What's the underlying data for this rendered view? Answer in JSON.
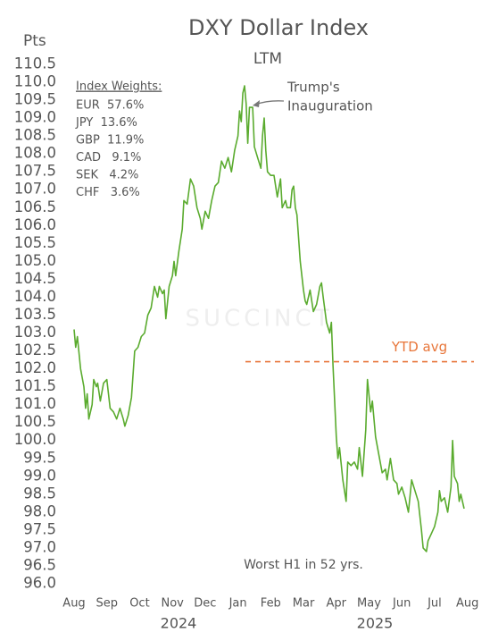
{
  "chart_data": {
    "type": "line",
    "title": "DXY Dollar Index",
    "subtitle": "LTM",
    "ylabel": "Pts",
    "years": [
      "2024",
      "2025"
    ],
    "xlim": [
      0,
      12.2
    ],
    "xticks": [
      {
        "value": 0,
        "label": "Aug"
      },
      {
        "value": 1,
        "label": "Sep"
      },
      {
        "value": 2,
        "label": "Oct"
      },
      {
        "value": 3,
        "label": "Nov"
      },
      {
        "value": 4,
        "label": "Dec"
      },
      {
        "value": 5,
        "label": "Jan"
      },
      {
        "value": 6,
        "label": "Feb"
      },
      {
        "value": 7,
        "label": "Mar"
      },
      {
        "value": 8,
        "label": "Apr"
      },
      {
        "value": 9,
        "label": "May"
      },
      {
        "value": 10,
        "label": "Jun"
      },
      {
        "value": 11,
        "label": "Jul"
      },
      {
        "value": 12,
        "label": "Aug"
      }
    ],
    "ylim": [
      96,
      110.5
    ],
    "yticks": [
      {
        "value": 96,
        "label": "96.0"
      },
      96.5,
      {
        "value": 97,
        "label": "97.0"
      },
      97.5,
      {
        "value": 98,
        "label": "98.0"
      },
      98.5,
      {
        "value": 99,
        "label": "99.0"
      },
      99.5,
      {
        "value": 100,
        "label": "100.0"
      },
      100.5,
      {
        "value": 101,
        "label": "101.0"
      },
      101.5,
      {
        "value": 102,
        "label": "102.0"
      },
      102.5,
      {
        "value": 103,
        "label": "103.0"
      },
      103.5,
      {
        "value": 104,
        "label": "104.0"
      },
      104.5,
      {
        "value": 105,
        "label": "105.0"
      },
      105.5,
      {
        "value": 106,
        "label": "106.0"
      },
      106.5,
      {
        "value": 107,
        "label": "107.0"
      },
      107.5,
      {
        "value": 108,
        "label": "108.0"
      },
      108.5,
      {
        "value": 109,
        "label": "109.0"
      },
      109.5,
      {
        "value": 110,
        "label": "110.0"
      },
      110.5
    ],
    "grid": false,
    "series": [
      {
        "name": "DXY",
        "color": "#5aab2e",
        "x": [
          0,
          0.05,
          0.1,
          0.2,
          0.3,
          0.35,
          0.4,
          0.45,
          0.55,
          0.6,
          0.68,
          0.72,
          0.8,
          0.9,
          1.0,
          1.1,
          1.2,
          1.3,
          1.4,
          1.5,
          1.55,
          1.65,
          1.75,
          1.85,
          1.95,
          2.05,
          2.15,
          2.25,
          2.35,
          2.45,
          2.55,
          2.6,
          2.7,
          2.75,
          2.8,
          2.9,
          3.0,
          3.05,
          3.1,
          3.2,
          3.3,
          3.35,
          3.45,
          3.55,
          3.65,
          3.75,
          3.85,
          3.9,
          4.0,
          4.1,
          4.2,
          4.3,
          4.4,
          4.5,
          4.6,
          4.7,
          4.8,
          4.9,
          5.0,
          5.05,
          5.1,
          5.15,
          5.2,
          5.25,
          5.3,
          5.35,
          5.45,
          5.5,
          5.6,
          5.7,
          5.75,
          5.8,
          5.85,
          5.9,
          6.0,
          6.1,
          6.2,
          6.3,
          6.35,
          6.45,
          6.5,
          6.6,
          6.65,
          6.7,
          6.75,
          6.8,
          6.9,
          7.0,
          7.05,
          7.1,
          7.2,
          7.3,
          7.4,
          7.5,
          7.55,
          7.6,
          7.7,
          7.8,
          7.85,
          7.9,
          8.0,
          8.05,
          8.1,
          8.2,
          8.3,
          8.35,
          8.45,
          8.55,
          8.65,
          8.7,
          8.8,
          8.9,
          8.95,
          9.05,
          9.1,
          9.2,
          9.3,
          9.4,
          9.5,
          9.55,
          9.65,
          9.75,
          9.85,
          9.9,
          10.0,
          10.1,
          10.2,
          10.3,
          10.4,
          10.5,
          10.6,
          10.65,
          10.75,
          10.8,
          10.9,
          11.0,
          11.1,
          11.15,
          11.2,
          11.3,
          11.4,
          11.5,
          11.55,
          11.6,
          11.7,
          11.75,
          11.8,
          11.9
        ],
        "values": [
          103.1,
          102.6,
          102.9,
          102.0,
          101.5,
          100.9,
          101.3,
          100.6,
          101.0,
          101.7,
          101.5,
          101.6,
          101.1,
          101.6,
          101.7,
          100.9,
          100.8,
          100.6,
          100.9,
          100.6,
          100.4,
          100.7,
          101.2,
          102.5,
          102.6,
          102.9,
          103.0,
          103.5,
          103.7,
          104.3,
          104.0,
          104.3,
          104.1,
          104.2,
          103.4,
          104.3,
          104.6,
          105.0,
          104.6,
          105.3,
          105.9,
          106.7,
          106.6,
          107.3,
          107.1,
          106.5,
          106.2,
          105.9,
          106.4,
          106.2,
          106.7,
          107.1,
          107.2,
          107.8,
          107.6,
          107.9,
          107.5,
          108.1,
          108.5,
          109.2,
          108.9,
          109.7,
          109.9,
          109.4,
          108.3,
          109.3,
          109.3,
          108.2,
          107.9,
          107.6,
          108.5,
          109.0,
          108.1,
          107.5,
          107.4,
          107.4,
          106.8,
          107.3,
          106.5,
          106.7,
          106.5,
          106.5,
          107.0,
          107.1,
          106.5,
          106.3,
          105.0,
          104.2,
          103.9,
          103.8,
          104.2,
          103.6,
          103.8,
          104.3,
          104.4,
          104.0,
          103.3,
          103.0,
          103.3,
          102.1,
          100.1,
          99.5,
          99.8,
          98.9,
          98.3,
          99.4,
          99.3,
          99.4,
          99.2,
          99.8,
          99.0,
          100.3,
          101.7,
          100.8,
          101.1,
          100.1,
          99.6,
          99.1,
          99.2,
          98.9,
          99.5,
          98.9,
          98.8,
          98.5,
          98.7,
          98.4,
          98.0,
          98.9,
          98.6,
          98.3,
          97.5,
          97.0,
          96.9,
          97.2,
          97.4,
          97.6,
          98.0,
          98.6,
          98.3,
          98.4,
          98.0,
          98.7,
          100.0,
          99.0,
          98.8,
          98.3,
          98.5,
          98.1
        ]
      }
    ],
    "reference_line": {
      "label": "YTD avg",
      "value": 102.2,
      "color": "#e8763a"
    },
    "index_weights": {
      "title": "Index Weights:",
      "items": [
        "EUR  57.6%",
        "JPY  13.6%",
        "GBP  11.9%",
        "CAD   9.1%",
        "SEK   4.2%",
        "CHF   3.6%"
      ]
    },
    "annotations": [
      "Trump's",
      "Inauguration",
      "Worst H1 in 52 yrs."
    ],
    "watermark": "SUCCINCT"
  }
}
